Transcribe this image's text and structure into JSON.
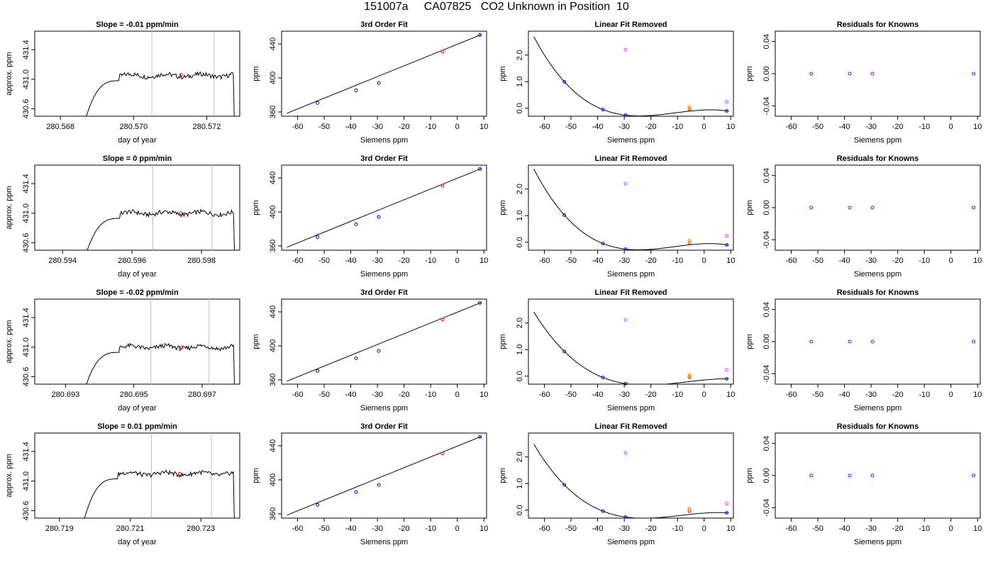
{
  "header": {
    "title": "151007a     CA07825   CO2 Unknown in Position  10"
  },
  "labels": {
    "siemens": "Siemens ppm",
    "ppm": "ppm",
    "day_of_year": "day of year",
    "approx_ppm": "approx. ppm",
    "fit_title": "3rd Order Fit",
    "linear_title": "Linear Fit Removed",
    "resid_title": "Residuals for Knowns"
  },
  "colors": {
    "knowns": "#0000ff",
    "unknown": "#ff0000",
    "gray_lines": "#bebebe",
    "linear_magenta": "#cc44ff",
    "linear_orange": "#ff9900",
    "resid_purple": "#8800cc"
  },
  "chart_data": [
    {
      "type": "line",
      "row": 1,
      "title": "Slope =  -0.01  ppm/min",
      "xlabel": "day of year",
      "ylabel": "approx. ppm",
      "xlim": [
        280.5673,
        280.5729
      ],
      "ylim": [
        430.5,
        431.65
      ],
      "xticks": [
        "280.568",
        "280.570",
        "280.572"
      ],
      "xtick_values": [
        280.568,
        280.57,
        280.572
      ],
      "yticks": [
        "430.6",
        "431.0",
        "431.4"
      ],
      "ytick_values": [
        430.6,
        431.0,
        431.4
      ],
      "vlines": [
        280.5705,
        280.5722
      ],
      "trace_start": 280.5687,
      "trace_end": 280.5728,
      "plateau": 431.05,
      "marker": [
        280.5713,
        431.06
      ]
    },
    {
      "type": "line",
      "row": 2,
      "title": "Slope =  0  ppm/min",
      "xlabel": "day of year",
      "ylabel": "approx. ppm",
      "xlim": [
        280.5932,
        280.5991
      ],
      "ylim": [
        430.5,
        431.65
      ],
      "xticks": [
        "280.594",
        "280.596",
        "280.598"
      ],
      "xtick_values": [
        280.594,
        280.596,
        280.598
      ],
      "yticks": [
        "430.6",
        "431.0",
        "431.4"
      ],
      "ytick_values": [
        430.6,
        431.0,
        431.4
      ],
      "vlines": [
        280.5966,
        280.5983
      ],
      "trace_start": 280.5947,
      "trace_end": 280.599,
      "plateau": 431.0,
      "marker": [
        280.5974,
        431.0
      ]
    },
    {
      "type": "line",
      "row": 3,
      "title": "Slope =  -0.02  ppm/min",
      "xlabel": "day of year",
      "ylabel": "approx. ppm",
      "xlim": [
        280.6921,
        280.6981
      ],
      "ylim": [
        430.5,
        431.65
      ],
      "xticks": [
        "280.693",
        "280.695",
        "280.697"
      ],
      "xtick_values": [
        280.693,
        280.695,
        280.697
      ],
      "yticks": [
        "430.6",
        "431.0",
        "431.4"
      ],
      "ytick_values": [
        430.6,
        431.0,
        431.4
      ],
      "vlines": [
        280.6955,
        280.6972
      ],
      "trace_start": 280.6936,
      "trace_end": 280.698,
      "plateau": 431.0,
      "marker": [
        280.6964,
        431.0
      ]
    },
    {
      "type": "line",
      "row": 4,
      "title": "Slope =  0.01  ppm/min",
      "xlabel": "day of year",
      "ylabel": "approx. ppm",
      "xlim": [
        280.7183,
        280.7241
      ],
      "ylim": [
        430.5,
        431.65
      ],
      "xticks": [
        "280.719",
        "280.721",
        "280.723"
      ],
      "xtick_values": [
        280.719,
        280.721,
        280.723
      ],
      "yticks": [
        "430.6",
        "431.0",
        "431.4"
      ],
      "ytick_values": [
        430.6,
        431.0,
        431.4
      ],
      "vlines": [
        280.7216,
        280.7233
      ],
      "trace_start": 280.7197,
      "trace_end": 280.724,
      "plateau": 431.1,
      "marker": [
        280.7224,
        431.1
      ]
    },
    {
      "type": "scatter",
      "title": "3rd Order Fit",
      "xlabel": "Siemens ppm",
      "ylabel": "ppm",
      "xlim": [
        -66,
        11
      ],
      "ylim": [
        355,
        455
      ],
      "xticks": [
        "-60",
        "-50",
        "-40",
        "-30",
        "-20",
        "-10",
        "0",
        "10"
      ],
      "xtick_values": [
        -60,
        -50,
        -40,
        -30,
        -20,
        -10,
        0,
        10
      ],
      "yticks": [
        "360",
        "400",
        "440"
      ],
      "ytick_values": [
        360,
        400,
        440
      ],
      "series": [
        {
          "role": "knowns",
          "x": [
            -52.5,
            -38,
            -29.5,
            8.5
          ],
          "y": [
            370.5,
            385.5,
            394,
            450.5
          ]
        },
        {
          "role": "unknown",
          "x": [
            -5.5
          ],
          "y": [
            431
          ]
        }
      ],
      "fit_line": {
        "x": [
          -64,
          9
        ],
        "y": [
          358.5,
          451
        ]
      }
    },
    {
      "type": "scatter",
      "title": "Linear Fit Removed",
      "xlabel": "Siemens ppm",
      "ylabel": "ppm",
      "xlim": [
        -66,
        11
      ],
      "ylim": [
        -0.3,
        2.9
      ],
      "xticks": [
        "-60",
        "-50",
        "-40",
        "-30",
        "-20",
        "-10",
        "0",
        "10"
      ],
      "xtick_values": [
        -60,
        -50,
        -40,
        -30,
        -20,
        -10,
        0,
        10
      ],
      "yticks": [
        "0.0",
        "1.0",
        "2.0"
      ],
      "ytick_values": [
        0,
        1,
        2
      ],
      "rows": [
        {
          "knowns_y": [
            1.0,
            -0.05,
            -0.26,
            -0.1
          ],
          "unknown_y": -0.04,
          "magenta_y": [
            2.2,
            0.24
          ],
          "orange_y": [
            0.05,
            0.0
          ]
        },
        {
          "knowns_y": [
            1.02,
            -0.05,
            -0.26,
            -0.1
          ],
          "unknown_y": -0.04,
          "magenta_y": [
            2.2,
            0.24
          ],
          "orange_y": [
            0.06,
            0.0
          ]
        },
        {
          "knowns_y": [
            0.93,
            -0.05,
            -0.28,
            -0.1
          ],
          "unknown_y": -0.04,
          "magenta_y": [
            2.12,
            0.23
          ],
          "orange_y": [
            0.05,
            0.0
          ]
        },
        {
          "knowns_y": [
            0.95,
            -0.04,
            -0.26,
            -0.1
          ],
          "unknown_y": -0.04,
          "magenta_y": [
            2.15,
            0.24
          ],
          "orange_y": [
            0.06,
            0.0
          ]
        }
      ],
      "knowns_x": [
        -52.5,
        -38,
        -29.5,
        8.5
      ],
      "unknown_x": -5.5,
      "magenta_x": [
        -29.5,
        8.5
      ],
      "orange_x": [
        -5.5,
        -5.5
      ]
    },
    {
      "type": "scatter",
      "title": "Residuals for Knowns",
      "xlabel": "Siemens ppm",
      "ylabel": "ppm",
      "xlim": [
        -66,
        11
      ],
      "ylim": [
        -0.053,
        0.053
      ],
      "xticks": [
        "-60",
        "-50",
        "-40",
        "-30",
        "-20",
        "-10",
        "0",
        "10"
      ],
      "xtick_values": [
        -60,
        -50,
        -40,
        -30,
        -20,
        -10,
        0,
        10
      ],
      "yticks": [
        "-0.04",
        "0.00",
        "0.04"
      ],
      "ytick_values": [
        -0.04,
        0,
        0.04
      ],
      "series": [
        {
          "role": "knowns",
          "x": [
            -52.5,
            -38,
            -29.5,
            8.5
          ],
          "y": [
            0,
            0,
            0,
            0
          ]
        }
      ]
    }
  ]
}
